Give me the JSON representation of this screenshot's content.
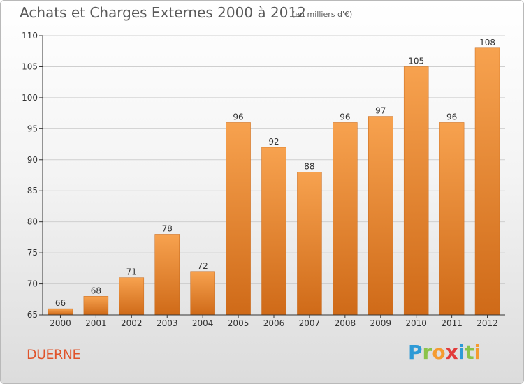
{
  "header": {
    "title": "Achats et Charges Externes 2000 à 2012",
    "subtitle": "(en milliers d'€)"
  },
  "footer": {
    "commune": "DUERNE",
    "logo_letters": [
      {
        "char": "P",
        "color": "#2e9ad6"
      },
      {
        "char": "r",
        "color": "#8bc34a"
      },
      {
        "char": "o",
        "color": "#f59b2f"
      },
      {
        "char": "x",
        "color": "#e23b3b"
      },
      {
        "char": "i",
        "color": "#2e9ad6"
      },
      {
        "char": "t",
        "color": "#8bc34a"
      },
      {
        "char": "i",
        "color": "#f59b2f"
      }
    ]
  },
  "colors": {
    "bar_top": "#f7a24f",
    "bar_bottom": "#cf6a18",
    "bar_stroke": "#c86a1c",
    "axis": "#333333",
    "grid": "#cfcfcf",
    "label": "#333333"
  },
  "chart_data": {
    "type": "bar",
    "title": "Achats et Charges Externes 2000 à 2012",
    "xlabel": "",
    "ylabel": "",
    "categories": [
      "2000",
      "2001",
      "2002",
      "2003",
      "2004",
      "2005",
      "2006",
      "2007",
      "2008",
      "2009",
      "2010",
      "2011",
      "2012"
    ],
    "values": [
      66,
      68,
      71,
      78,
      72,
      96,
      92,
      88,
      96,
      97,
      105,
      96,
      108
    ],
    "ylim": [
      65,
      110
    ],
    "yticks": [
      65,
      70,
      75,
      80,
      85,
      90,
      95,
      100,
      105,
      110
    ],
    "grid": true,
    "legend": "none"
  }
}
